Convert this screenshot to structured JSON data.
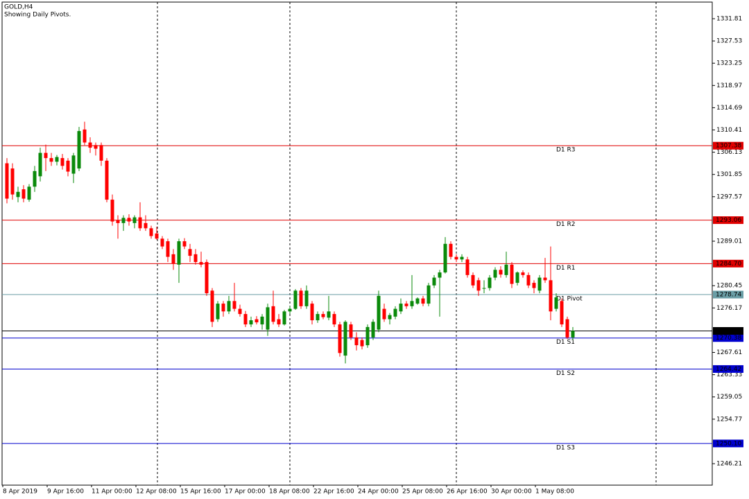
{
  "chart_data": {
    "type": "candlestick",
    "title": "GOLD,H4",
    "subtitle": "Showing Daily Pivots.",
    "categories": [
      "8 Apr 2019",
      null,
      null,
      null,
      null,
      null,
      null,
      null,
      "9 Apr 16:00",
      null,
      null,
      null,
      null,
      null,
      null,
      null,
      "11 Apr 00:00",
      null,
      null,
      null,
      null,
      null,
      null,
      null,
      "12 Apr 08:00",
      null,
      null,
      null,
      null,
      null,
      null,
      null,
      "15 Apr 16:00",
      null,
      null,
      null,
      null,
      null,
      null,
      null,
      "17 Apr 00:00",
      null,
      null,
      null,
      null,
      null,
      null,
      null,
      "18 Apr 08:00",
      null,
      null,
      null,
      null,
      null,
      null,
      null,
      "22 Apr 16:00",
      null,
      null,
      null,
      null,
      null,
      null,
      null,
      "24 Apr 00:00",
      null,
      null,
      null,
      null,
      null,
      null,
      null,
      "25 Apr 08:00",
      null,
      null,
      null,
      null,
      null,
      null,
      null,
      "26 Apr 16:00",
      null,
      null,
      null,
      null,
      null,
      null,
      null,
      "30 Apr 00:00",
      null,
      null,
      null,
      null,
      null,
      null,
      null,
      "1 May 08:00",
      null,
      null,
      null,
      null,
      null,
      null
    ],
    "open": [
      1304.0,
      1303.0,
      1297.5,
      1299.0,
      1297.0,
      1299.5,
      1301.5,
      1306.0,
      1305.0,
      1304.3,
      1305.0,
      1304.5,
      1302.0,
      1303.0,
      1310.5,
      1308.0,
      1307.5,
      1307.5,
      1304.5,
      1297.0,
      1293.0,
      1292.5,
      1293.5,
      1292.5,
      1293.6,
      1292.5,
      1291.5,
      1290.5,
      1289.5,
      1289.0,
      1286.5,
      1284.5,
      1289.0,
      1287.5,
      1286.5,
      1285.0,
      1285.0,
      1279.5,
      1274.0,
      1277.0,
      1275.5,
      1277.5,
      1276.0,
      1275.0,
      1273.0,
      1274.0,
      1273.0,
      1272.0,
      1276.5,
      1274.0,
      1273.0,
      1275.5,
      1276.0,
      1279.5,
      1276.5,
      1277.0,
      1273.8,
      1275.0,
      1274.3,
      1275.0,
      1273.0,
      1267.0,
      1273.0,
      1270.5,
      1270.0,
      1269.0,
      1270.5,
      1272.0,
      1276.0,
      1274.0,
      1274.5,
      1275.5,
      1277.0,
      1276.5,
      1277.0,
      1278.0,
      1277.0,
      1280.5,
      1282.0,
      1283.0,
      1288.5,
      1286.0,
      1285.5,
      1285.5,
      1282.5,
      1281.5,
      1280.0,
      1280.0,
      1282.0,
      1283.5,
      1282.5,
      1284.5,
      1281.0,
      1283.0,
      1282.5,
      1281.0,
      1279.5,
      1282.0,
      1281.5,
      1276.0,
      1277.5,
      1274.0,
      1270.5
    ],
    "high": [
      1305.0,
      1304.0,
      1299.5,
      1299.8,
      1300.0,
      1303.5,
      1307.0,
      1307.6,
      1306.0,
      1305.6,
      1305.8,
      1305.0,
      1306.0,
      1311.0,
      1312.0,
      1309.0,
      1308.0,
      1308.0,
      1305.0,
      1298.0,
      1294.0,
      1294.0,
      1294.2,
      1294.0,
      1296.5,
      1294.0,
      1292.0,
      1291.8,
      1290.0,
      1289.5,
      1287.5,
      1289.5,
      1289.6,
      1288.5,
      1287.5,
      1287.0,
      1285.5,
      1280.0,
      1277.5,
      1277.5,
      1278.5,
      1281.0,
      1276.8,
      1275.6,
      1274.5,
      1274.6,
      1275.0,
      1277.0,
      1279.5,
      1275.0,
      1275.8,
      1276.5,
      1279.8,
      1280.0,
      1280.5,
      1277.5,
      1275.5,
      1275.5,
      1278.5,
      1275.5,
      1273.5,
      1273.8,
      1273.5,
      1271.5,
      1270.5,
      1273.0,
      1274.0,
      1279.5,
      1277.0,
      1275.2,
      1276.5,
      1278.0,
      1277.5,
      1282.5,
      1278.2,
      1278.5,
      1281.0,
      1282.5,
      1283.5,
      1289.8,
      1289.0,
      1286.5,
      1286.5,
      1286.0,
      1283.0,
      1282.0,
      1281.5,
      1282.5,
      1284.0,
      1284.2,
      1287.0,
      1285.0,
      1283.2,
      1283.4,
      1283.0,
      1281.5,
      1282.5,
      1285.8,
      1288.0,
      1279.0,
      1278.0,
      1274.5,
      1272.5
    ],
    "low": [
      1296.3,
      1297.0,
      1296.5,
      1296.5,
      1296.6,
      1298.5,
      1300.5,
      1302.5,
      1303.5,
      1303.6,
      1302.8,
      1301.5,
      1300.2,
      1302.5,
      1307.5,
      1306.0,
      1305.5,
      1303.5,
      1296.5,
      1292.0,
      1289.5,
      1291.0,
      1292.0,
      1291.5,
      1291.0,
      1291.0,
      1289.5,
      1289.3,
      1287.5,
      1285.0,
      1283.5,
      1281.0,
      1287.5,
      1285.0,
      1284.5,
      1284.0,
      1278.5,
      1272.5,
      1273.5,
      1274.5,
      1275.0,
      1275.5,
      1274.5,
      1272.5,
      1272.5,
      1273.0,
      1272.0,
      1270.8,
      1273.0,
      1272.5,
      1272.8,
      1275.0,
      1275.8,
      1276.0,
      1276.0,
      1273.0,
      1273.3,
      1274.0,
      1273.8,
      1272.5,
      1266.8,
      1265.5,
      1270.0,
      1268.0,
      1268.2,
      1268.5,
      1270.0,
      1271.5,
      1273.5,
      1273.0,
      1274.0,
      1275.0,
      1276.0,
      1276.0,
      1276.8,
      1276.5,
      1276.5,
      1280.0,
      1274.5,
      1282.8,
      1285.5,
      1285.0,
      1285.0,
      1282.0,
      1280.0,
      1278.5,
      1279.0,
      1279.5,
      1281.5,
      1282.0,
      1282.0,
      1280.0,
      1280.5,
      1282.0,
      1280.0,
      1279.0,
      1279.0,
      1281.0,
      1273.8,
      1275.5,
      1272.5,
      1270.2,
      1270.0
    ],
    "close": [
      1297.2,
      1298.0,
      1298.5,
      1297.2,
      1299.5,
      1302.5,
      1306.0,
      1305.0,
      1304.3,
      1305.2,
      1303.5,
      1302.4,
      1305.5,
      1310.2,
      1308.0,
      1307.0,
      1306.8,
      1304.5,
      1297.0,
      1292.8,
      1292.5,
      1293.5,
      1292.8,
      1293.6,
      1291.5,
      1291.5,
      1290.0,
      1289.5,
      1288.0,
      1286.0,
      1284.7,
      1289.0,
      1288.0,
      1286.2,
      1285.0,
      1284.5,
      1279.0,
      1273.5,
      1277.0,
      1275.5,
      1277.5,
      1276.0,
      1275.0,
      1273.0,
      1273.8,
      1273.4,
      1274.5,
      1276.3,
      1273.5,
      1273.0,
      1275.5,
      1276.0,
      1279.5,
      1276.5,
      1279.5,
      1273.8,
      1275.0,
      1274.4,
      1275.5,
      1273.0,
      1267.5,
      1273.5,
      1270.5,
      1269.0,
      1268.8,
      1272.5,
      1273.5,
      1278.5,
      1274.0,
      1274.8,
      1276.0,
      1277.0,
      1276.5,
      1277.5,
      1278.0,
      1277.0,
      1280.5,
      1282.0,
      1283.0,
      1288.5,
      1286.0,
      1285.5,
      1286.0,
      1282.5,
      1280.5,
      1279.5,
      1280.0,
      1282.0,
      1283.5,
      1282.6,
      1284.5,
      1280.8,
      1283.0,
      1282.5,
      1280.5,
      1280.0,
      1282.0,
      1281.5,
      1275.5,
      1278.2,
      1273.0,
      1270.5,
      1271.75
    ],
    "up_color": "#0a8a0a",
    "down_color": "#ff0000",
    "ylim": [
      1242.08,
      1335.01
    ],
    "yticks": [
      1331.81,
      1327.53,
      1323.25,
      1318.97,
      1314.69,
      1310.41,
      1306.13,
      1301.85,
      1297.57,
      1289.01,
      1280.45,
      1276.17,
      1267.61,
      1263.33,
      1259.05,
      1254.77,
      1246.21
    ],
    "levels": [
      {
        "name": "D1 R3",
        "value": 1307.38,
        "color": "#e00000"
      },
      {
        "name": "D1 R2",
        "value": 1293.06,
        "color": "#e00000"
      },
      {
        "name": "D1 R1",
        "value": 1284.7,
        "value_label": "1284.70",
        "color": "#e00000"
      },
      {
        "name": "D1 Pivot",
        "value": 1278.74,
        "color": "#6a9ea6"
      },
      {
        "name": "D1 S1",
        "value": 1270.38,
        "color": "#0000cd"
      },
      {
        "name": "D1 S2",
        "value": 1264.42,
        "color": "#0000cd"
      },
      {
        "name": "D1 S3",
        "value": 1250.1,
        "value_label": "1250.10",
        "color": "#0000cd"
      }
    ],
    "last_price": 1271.75,
    "last_price_color": "#000000"
  }
}
